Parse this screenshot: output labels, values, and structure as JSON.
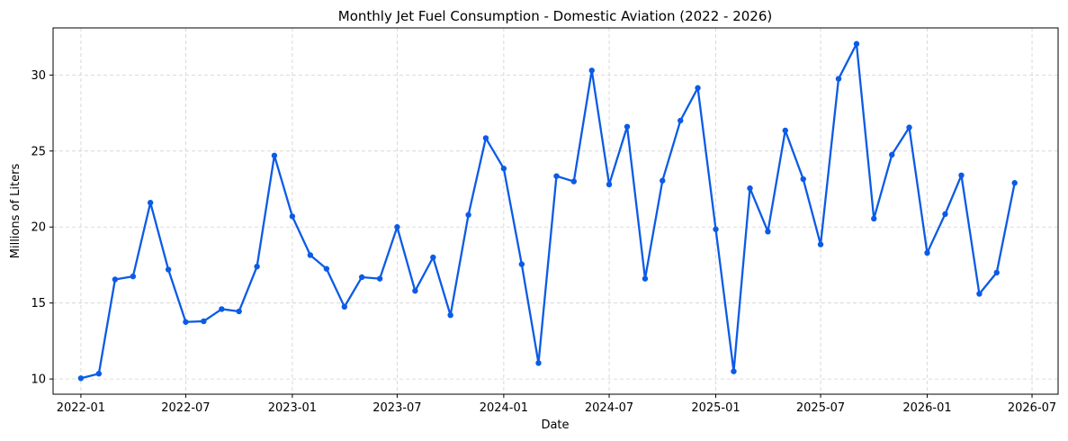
{
  "chart_data": {
    "type": "line",
    "title": "Monthly Jet Fuel Consumption - Domestic Aviation (2022 - 2026)",
    "xlabel": "Date",
    "ylabel": "Millions of Liters",
    "xlim": [
      "2021-11-14",
      "2026-08-15"
    ],
    "ylim": [
      9.0,
      33.1
    ],
    "x_ticks": [
      "2022-01",
      "2022-07",
      "2023-01",
      "2023-07",
      "2024-01",
      "2024-07",
      "2025-01",
      "2025-07",
      "2026-01",
      "2026-07"
    ],
    "y_ticks": [
      10,
      15,
      20,
      25,
      30
    ],
    "grid": true,
    "color": "#0b5be6",
    "series": [
      {
        "x": [
          "2022-01",
          "2022-02",
          "2022-03",
          "2022-04",
          "2022-05",
          "2022-06",
          "2022-07",
          "2022-08",
          "2022-09",
          "2022-10",
          "2022-11",
          "2022-12",
          "2023-01",
          "2023-02",
          "2023-03",
          "2023-04",
          "2023-05",
          "2023-06",
          "2023-07",
          "2023-08",
          "2023-09",
          "2023-10",
          "2023-11",
          "2023-12",
          "2024-01",
          "2024-02",
          "2024-03",
          "2024-04",
          "2024-05",
          "2024-06",
          "2024-07",
          "2024-08",
          "2024-09",
          "2024-10",
          "2024-11",
          "2024-12",
          "2025-01",
          "2025-02",
          "2025-03",
          "2025-04",
          "2025-05",
          "2025-06",
          "2025-07",
          "2025-08",
          "2025-09",
          "2025-10",
          "2025-11",
          "2025-12",
          "2026-01",
          "2026-02",
          "2026-03",
          "2026-04",
          "2026-05",
          "2026-06"
        ],
        "y": [
          10.05,
          10.35,
          16.55,
          16.75,
          21.6,
          17.2,
          13.75,
          13.8,
          14.6,
          14.45,
          17.4,
          24.7,
          20.7,
          18.15,
          17.25,
          14.75,
          16.7,
          16.6,
          20.0,
          15.8,
          18.0,
          14.2,
          20.8,
          25.85,
          23.85,
          17.55,
          11.05,
          23.35,
          23.0,
          30.3,
          22.8,
          26.6,
          16.6,
          23.05,
          27.0,
          29.15,
          19.85,
          10.5,
          22.55,
          19.7,
          26.35,
          23.15,
          18.85,
          29.75,
          32.05,
          20.55,
          24.75,
          26.55,
          18.3,
          20.85,
          23.4,
          15.6,
          17.0,
          22.9
        ]
      }
    ]
  }
}
